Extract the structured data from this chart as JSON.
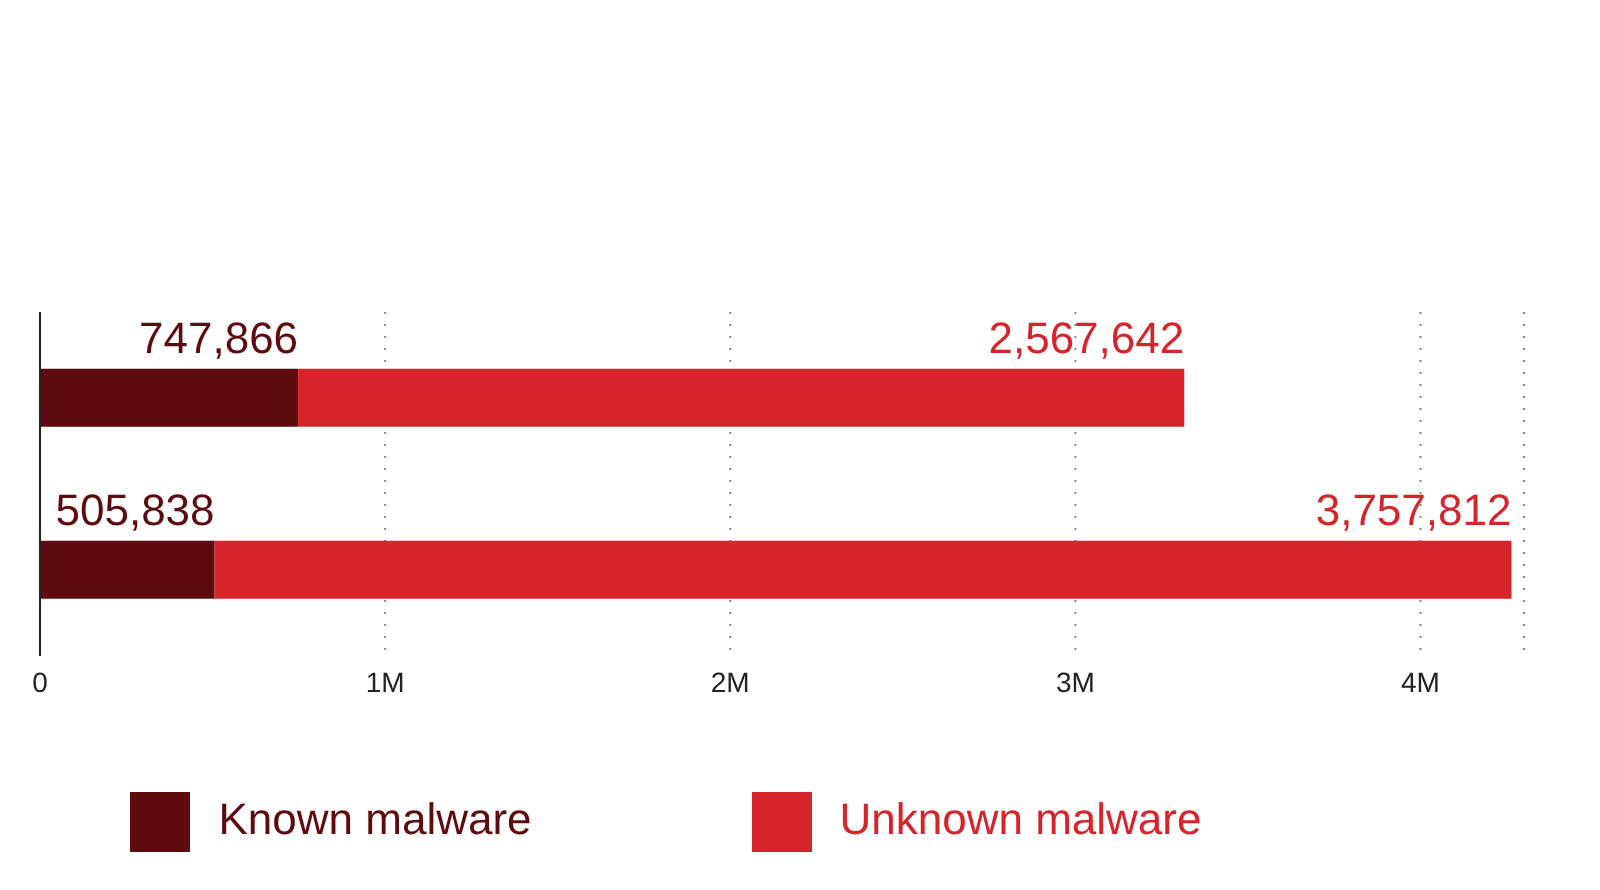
{
  "chart_data": {
    "type": "bar",
    "orientation": "horizontal",
    "stacked": true,
    "categories": [
      null,
      null
    ],
    "series": [
      {
        "name": "Known malware",
        "color": "#5e0b0f",
        "values": [
          747866,
          505838
        ],
        "value_labels": [
          "747,866",
          "505,838"
        ]
      },
      {
        "name": "Unknown malware",
        "color": "#d7242b",
        "values": [
          2567642,
          3757812
        ],
        "value_labels": [
          "2,567,642",
          "3,757,812"
        ]
      }
    ],
    "xlim": [
      0,
      4300000
    ],
    "xticks": [
      0,
      {
        "value": 1000000,
        "label": "1M"
      },
      {
        "value": 2000000,
        "label": "2M"
      },
      {
        "value": 3000000,
        "label": "3M"
      },
      {
        "value": 4000000,
        "label": "4M"
      }
    ],
    "grid": "x",
    "legend": "bottom"
  }
}
